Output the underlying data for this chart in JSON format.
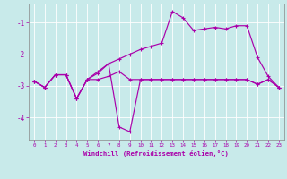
{
  "title": "",
  "xlabel": "Windchill (Refroidissement éolien,°C)",
  "ylabel": "",
  "xlim": [
    -0.5,
    23.5
  ],
  "ylim": [
    -4.7,
    -0.4
  ],
  "yticks": [
    -4,
    -3,
    -2,
    -1
  ],
  "xticks": [
    0,
    1,
    2,
    3,
    4,
    5,
    6,
    7,
    8,
    9,
    10,
    11,
    12,
    13,
    14,
    15,
    16,
    17,
    18,
    19,
    20,
    21,
    22,
    23
  ],
  "background_color": "#c8eaea",
  "grid_color": "#b0d8d8",
  "line_color": "#aa00aa",
  "line1_x": [
    0,
    1,
    2,
    3,
    4,
    5,
    6,
    7,
    8,
    9,
    10,
    11,
    12,
    13,
    14,
    15,
    16,
    17,
    18,
    19,
    20,
    21,
    22,
    23
  ],
  "line1_y": [
    -2.85,
    -3.05,
    -2.65,
    -2.65,
    -3.4,
    -2.8,
    -2.8,
    -2.7,
    -2.55,
    -2.8,
    -2.8,
    -2.8,
    -2.8,
    -2.8,
    -2.8,
    -2.8,
    -2.8,
    -2.8,
    -2.8,
    -2.8,
    -2.8,
    -2.95,
    -2.8,
    -3.05
  ],
  "line2_x": [
    0,
    1,
    2,
    3,
    4,
    5,
    6,
    7,
    8,
    9,
    10,
    11,
    12,
    13,
    14,
    15,
    16,
    17,
    18,
    19,
    20,
    21,
    22,
    23
  ],
  "line2_y": [
    -2.85,
    -3.05,
    -2.65,
    -2.65,
    -3.4,
    -2.8,
    -2.55,
    -2.3,
    -4.3,
    -4.45,
    -2.8,
    -2.8,
    -2.8,
    -2.8,
    -2.8,
    -2.8,
    -2.8,
    -2.8,
    -2.8,
    -2.8,
    -2.8,
    -2.95,
    -2.8,
    -3.05
  ],
  "line3_x": [
    0,
    1,
    2,
    3,
    4,
    5,
    6,
    7,
    8,
    9,
    10,
    11,
    12,
    13,
    14,
    15,
    16,
    17,
    18,
    19,
    20,
    21,
    22,
    23
  ],
  "line3_y": [
    -2.85,
    -3.05,
    -2.65,
    -2.65,
    -3.4,
    -2.8,
    -2.6,
    -2.3,
    -2.15,
    -2.0,
    -1.85,
    -1.75,
    -1.65,
    -0.65,
    -0.85,
    -1.25,
    -1.2,
    -1.15,
    -1.2,
    -1.1,
    -1.1,
    -2.1,
    -2.7,
    -3.05
  ]
}
